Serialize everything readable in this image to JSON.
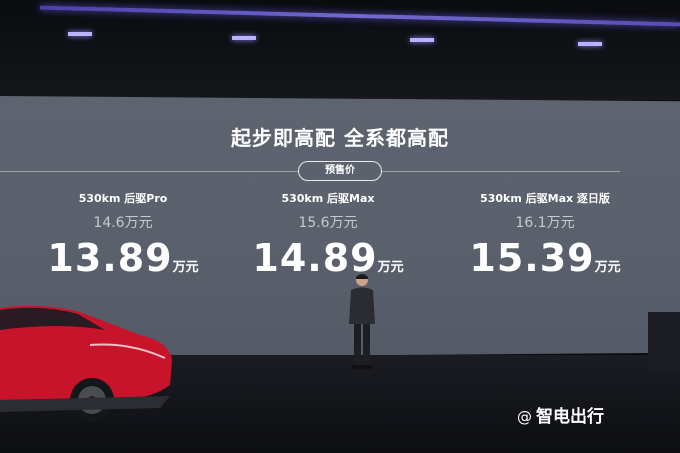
{
  "slide": {
    "title": "起步即高配  全系都高配",
    "badge": "预售价",
    "trims": [
      {
        "model": "530km 后驱Pro",
        "original_price": "14.6",
        "presale_price": "13.89"
      },
      {
        "model": "530km 后驱Max",
        "original_price": "15.6",
        "presale_price": "14.89"
      },
      {
        "model": "530km 后驱Max 逐日版",
        "original_price": "16.1",
        "presale_price": "15.39"
      }
    ],
    "unit": "万元"
  },
  "watermark": {
    "at": "@",
    "text": "智电出行",
    "accent": "#2ad4e0"
  },
  "colors": {
    "screen": "#5d6470",
    "car": "#c8142a",
    "ceiling_light": "#8c82ff"
  }
}
